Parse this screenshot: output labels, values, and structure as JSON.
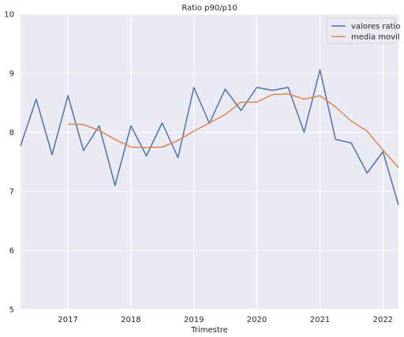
{
  "chart_data": {
    "type": "line",
    "title": "Ratio p90/p10",
    "xlabel": "Trimestre",
    "ylabel": "",
    "xlim": [
      "2016-04-01",
      "2022-04-01"
    ],
    "ylim": [
      5,
      10
    ],
    "x_ticks": [
      "2017-01-01",
      "2018-01-01",
      "2019-01-01",
      "2020-01-01",
      "2021-01-01",
      "2022-01-01"
    ],
    "x_tick_labels": [
      "2017",
      "2018",
      "2019",
      "2020",
      "2021",
      "2022"
    ],
    "y_ticks": [
      5,
      6,
      7,
      8,
      9,
      10
    ],
    "grid": true,
    "legend_position": "top-right",
    "series": [
      {
        "name": "valores ratio",
        "color": "#4c72b0",
        "x": [
          "2016-04-01",
          "2016-07-01",
          "2016-10-01",
          "2017-01-01",
          "2017-04-01",
          "2017-07-01",
          "2017-10-01",
          "2018-01-01",
          "2018-04-01",
          "2018-07-01",
          "2018-10-01",
          "2019-01-01",
          "2019-04-01",
          "2019-07-01",
          "2019-10-01",
          "2020-01-01",
          "2020-04-01",
          "2020-07-01",
          "2020-10-01",
          "2021-01-01",
          "2021-04-01",
          "2021-07-01",
          "2021-10-01",
          "2022-01-01",
          "2022-04-01"
        ],
        "values": [
          7.77,
          8.56,
          7.62,
          8.62,
          7.69,
          8.11,
          7.1,
          8.11,
          7.6,
          8.16,
          7.57,
          8.76,
          8.15,
          8.73,
          8.37,
          8.76,
          8.71,
          8.76,
          8.0,
          9.06,
          7.88,
          7.82,
          7.31,
          7.67,
          6.77
        ]
      },
      {
        "name": "media movil",
        "color": "#dd8452",
        "x": [
          "2017-01-01",
          "2017-04-01",
          "2017-07-01",
          "2017-10-01",
          "2018-01-01",
          "2018-04-01",
          "2018-07-01",
          "2018-10-01",
          "2019-01-01",
          "2019-04-01",
          "2019-07-01",
          "2019-10-01",
          "2020-01-01",
          "2020-04-01",
          "2020-07-01",
          "2020-10-01",
          "2021-01-01",
          "2021-04-01",
          "2021-07-01",
          "2021-10-01",
          "2022-01-01",
          "2022-04-01"
        ],
        "values": [
          8.14,
          8.13,
          8.03,
          7.88,
          7.75,
          7.74,
          7.75,
          7.86,
          8.02,
          8.16,
          8.3,
          8.51,
          8.51,
          8.64,
          8.65,
          8.56,
          8.62,
          8.43,
          8.19,
          8.02,
          7.7,
          7.4
        ]
      }
    ]
  }
}
